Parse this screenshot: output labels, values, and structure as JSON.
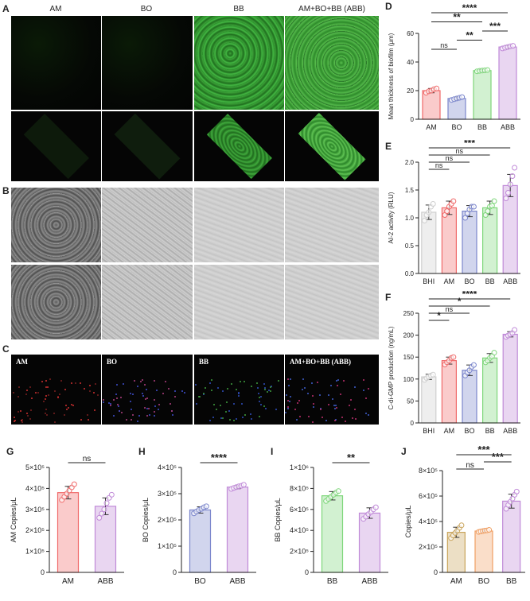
{
  "panel_letters": [
    "A",
    "B",
    "C",
    "D",
    "E",
    "F",
    "G",
    "H",
    "I",
    "J"
  ],
  "panelA": {
    "captions": [
      "AM",
      "BO",
      "BB",
      "AM+BO+BB (ABB)"
    ]
  },
  "panelC": {
    "labels": [
      "AM",
      "BO",
      "BB",
      "AM+BO+BB (ABB)"
    ]
  },
  "colors": {
    "AM": "#f06a6a",
    "BO": "#7b86cc",
    "BB": "#7ed67a",
    "ABB": "#c08ad8",
    "BHI": "#cfcfcf",
    "J_AM": "#c9a45a",
    "J_BO": "#f0a065"
  },
  "chart_data": [
    {
      "id": "D",
      "type": "bar",
      "categories": [
        "AM",
        "BO",
        "BB",
        "ABB"
      ],
      "values": [
        20,
        14.5,
        34,
        50.5
      ],
      "errors": [
        1.5,
        1,
        0.8,
        1
      ],
      "points": [
        [
          18.5,
          19.5,
          20,
          21,
          21.5
        ],
        [
          13.5,
          14,
          14.5,
          15,
          15.5
        ],
        [
          33.5,
          33.8,
          34,
          34.2,
          34.4
        ],
        [
          49.5,
          50,
          50.5,
          51,
          51.3
        ]
      ],
      "ylabel": "Mean thickness of biofilm (μm)",
      "ylim": [
        0,
        60
      ],
      "yticks": [
        0,
        20,
        40,
        60
      ],
      "ytick_labels": [
        "0",
        "20",
        "40",
        "60"
      ],
      "sig": [
        {
          "from": 0,
          "to": 1,
          "label": "ns"
        },
        {
          "from": 0,
          "to": 2,
          "label": "**"
        },
        {
          "from": 1,
          "to": 2,
          "label": "**"
        },
        {
          "from": 2,
          "to": 3,
          "label": "***"
        },
        {
          "from": 0,
          "to": 3,
          "label": "****"
        }
      ]
    },
    {
      "id": "E",
      "type": "bar",
      "categories": [
        "BHI",
        "AM",
        "BO",
        "BB",
        "ABB"
      ],
      "values": [
        1.1,
        1.18,
        1.12,
        1.18,
        1.58
      ],
      "errors": [
        0.13,
        0.12,
        0.1,
        0.12,
        0.2
      ],
      "points": [
        [
          0.95,
          1.05,
          1.1,
          1.2,
          1.25
        ],
        [
          1.05,
          1.12,
          1.2,
          1.25,
          1.3
        ],
        [
          1.0,
          1.08,
          1.15,
          1.2,
          1.2
        ],
        [
          1.05,
          1.12,
          1.2,
          1.22,
          1.3
        ],
        [
          1.35,
          1.45,
          1.6,
          1.75,
          1.9
        ]
      ],
      "ylabel": "AI-2 activity (RLU)",
      "ylim": [
        0,
        2.0
      ],
      "yticks": [
        0,
        0.5,
        1.0,
        1.5,
        2.0
      ],
      "ytick_labels": [
        "0.0",
        "0.5",
        "1.0",
        "1.5",
        "2.0"
      ],
      "sig": [
        {
          "from": 0,
          "to": 1,
          "label": "ns"
        },
        {
          "from": 0,
          "to": 2,
          "label": "ns"
        },
        {
          "from": 0,
          "to": 3,
          "label": "ns"
        },
        {
          "from": 0,
          "to": 4,
          "label": "***"
        }
      ]
    },
    {
      "id": "F",
      "type": "bar",
      "categories": [
        "BHI",
        "AM",
        "BO",
        "BB",
        "ABB"
      ],
      "values": [
        105,
        142,
        120,
        148,
        202
      ],
      "errors": [
        6,
        8,
        12,
        10,
        6
      ],
      "points": [
        [
          98,
          102,
          105,
          108,
          110
        ],
        [
          133,
          138,
          142,
          148,
          150
        ],
        [
          108,
          115,
          120,
          128,
          132
        ],
        [
          138,
          142,
          148,
          152,
          160
        ],
        [
          196,
          199,
          202,
          205,
          212
        ]
      ],
      "ylabel": "C-di-GMP production (ng/mL)",
      "ylim": [
        0,
        250
      ],
      "yticks": [
        0,
        50,
        100,
        150,
        200,
        250
      ],
      "ytick_labels": [
        "0",
        "50",
        "100",
        "150",
        "200",
        "250"
      ],
      "sig": [
        {
          "from": 0,
          "to": 1,
          "label": "*"
        },
        {
          "from": 0,
          "to": 2,
          "label": "ns"
        },
        {
          "from": 0,
          "to": 3,
          "label": "*"
        },
        {
          "from": 0,
          "to": 4,
          "label": "****"
        }
      ]
    },
    {
      "id": "G",
      "type": "bar",
      "categories": [
        "AM",
        "ABB"
      ],
      "values": [
        380000,
        315000
      ],
      "errors": [
        30000,
        40000
      ],
      "points": [
        [
          345000,
          360000,
          375000,
          390000,
          405000,
          420000
        ],
        [
          260000,
          280000,
          300000,
          330000,
          355000,
          370000
        ]
      ],
      "ylabel": "AM Copies/μL",
      "ylim": [
        0,
        500000
      ],
      "yticks": [
        0,
        100000,
        200000,
        300000,
        400000,
        500000
      ],
      "ytick_labels": [
        "0",
        "1×10⁵",
        "2×10⁵",
        "3×10⁵",
        "4×10⁵",
        "5×10⁵"
      ],
      "sig": [
        {
          "from": 0,
          "to": 1,
          "label": "ns"
        }
      ]
    },
    {
      "id": "H",
      "type": "bar",
      "categories": [
        "BO",
        "ABB"
      ],
      "values": [
        238000,
        325000
      ],
      "errors": [
        12000,
        6000
      ],
      "points": [
        [
          225000,
          232000,
          238000,
          242000,
          248000,
          252000
        ],
        [
          318000,
          322000,
          325000,
          328000,
          330000,
          334000
        ]
      ],
      "ylabel": "BO Copies/μL",
      "ylim": [
        0,
        400000
      ],
      "yticks": [
        0,
        100000,
        200000,
        300000,
        400000
      ],
      "ytick_labels": [
        "0",
        "1×10⁵",
        "2×10⁵",
        "3×10⁵",
        "4×10⁵"
      ],
      "sig": [
        {
          "from": 0,
          "to": 1,
          "label": "****"
        }
      ]
    },
    {
      "id": "I",
      "type": "bar",
      "categories": [
        "BB",
        "ABB"
      ],
      "values": [
        730000,
        565000
      ],
      "errors": [
        40000,
        50000
      ],
      "points": [
        [
          680000,
          700000,
          720000,
          740000,
          760000,
          775000
        ],
        [
          510000,
          530000,
          555000,
          575000,
          600000,
          620000
        ]
      ],
      "ylabel": "BB Copies/μL",
      "ylim": [
        0,
        1000000
      ],
      "yticks": [
        0,
        200000,
        400000,
        600000,
        800000,
        1000000
      ],
      "ytick_labels": [
        "0",
        "2×10⁵",
        "4×10⁵",
        "6×10⁵",
        "8×10⁵",
        "1×10⁶"
      ],
      "sig": [
        {
          "from": 0,
          "to": 1,
          "label": "**"
        }
      ]
    },
    {
      "id": "J",
      "type": "bar",
      "categories": [
        "AM",
        "BO",
        "BB"
      ],
      "values": [
        315000,
        325000,
        560000
      ],
      "errors": [
        40000,
        8000,
        55000
      ],
      "points": [
        [
          270000,
          290000,
          310000,
          330000,
          350000,
          370000
        ],
        [
          318000,
          322000,
          325000,
          328000,
          330000,
          334000
        ],
        [
          500000,
          530000,
          555000,
          580000,
          610000,
          635000
        ]
      ],
      "ylabel": "Copies/μL",
      "ylim": [
        0,
        800000
      ],
      "yticks": [
        0,
        200000,
        400000,
        600000,
        800000
      ],
      "ytick_labels": [
        "0",
        "2×10⁵",
        "4×10⁵",
        "6×10⁵",
        "8×10⁵"
      ],
      "sig": [
        {
          "from": 0,
          "to": 1,
          "label": "ns"
        },
        {
          "from": 1,
          "to": 2,
          "label": "***"
        },
        {
          "from": 0,
          "to": 2,
          "label": "***"
        }
      ]
    }
  ]
}
